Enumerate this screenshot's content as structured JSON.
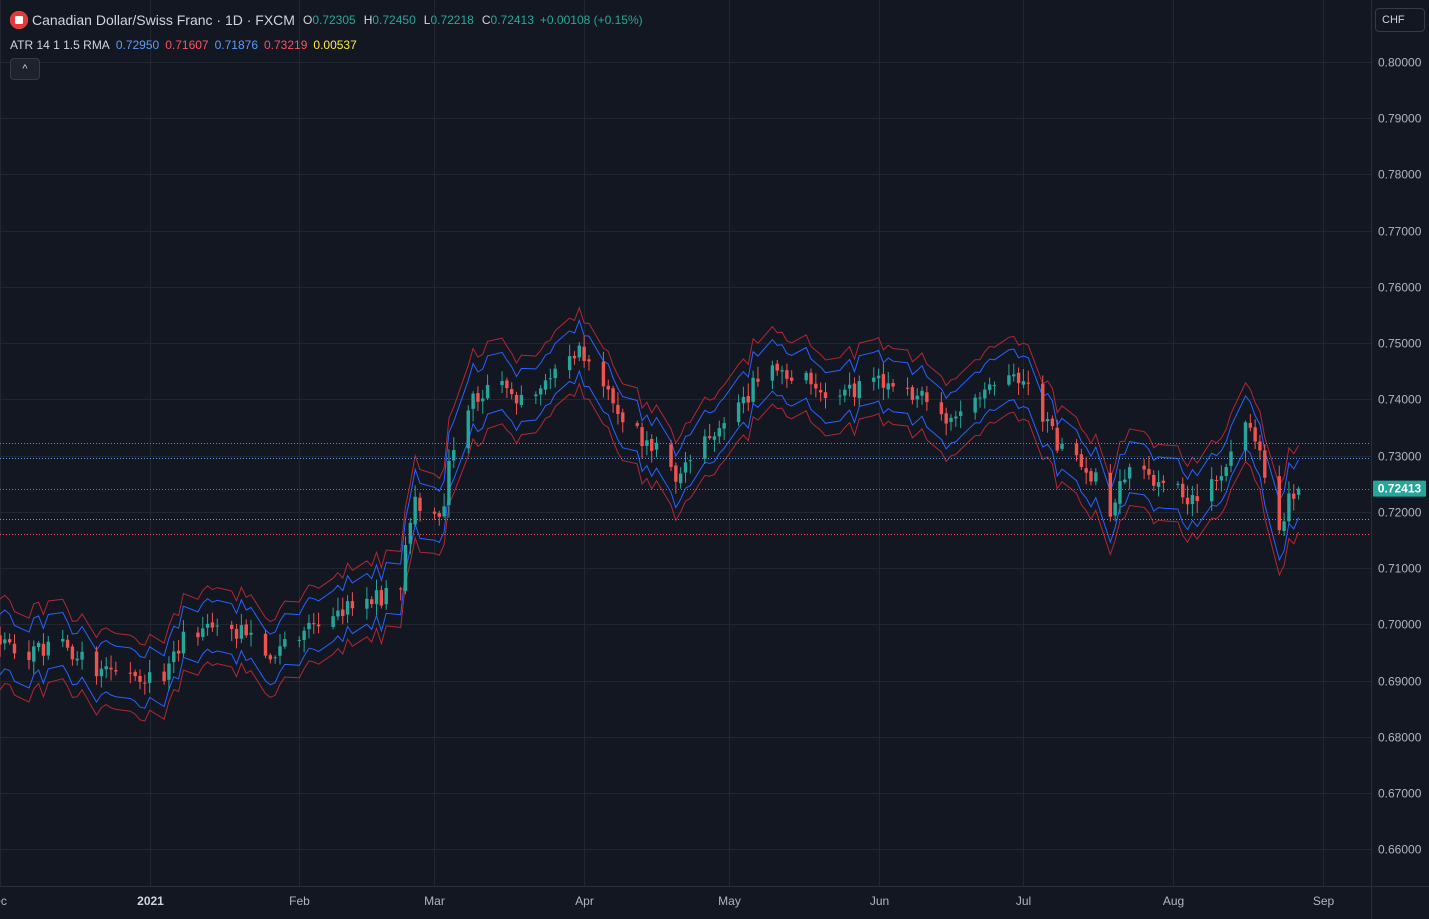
{
  "header": {
    "symbol_title": "Canadian Dollar/Swiss Franc · 1D · FXCM",
    "o_label": "O",
    "o_value": "0.72305",
    "h_label": "H",
    "h_value": "0.72450",
    "l_label": "L",
    "l_value": "0.72218",
    "c_label": "C",
    "c_value": "0.72413",
    "change": "+0.00108 (+0.15%)",
    "collapse_glyph": "^",
    "currency": "CHF"
  },
  "indicator": {
    "label": "ATR 14 1 1.5 RMA",
    "values": [
      "0.72950",
      "0.71607",
      "0.71876",
      "0.73219",
      "0.00537"
    ],
    "colors": [
      "#5b9cf6",
      "#f7525f",
      "#5b9cf6",
      "#f7525f",
      "#ffeb3b"
    ]
  },
  "colors": {
    "background": "#131722",
    "grid": "#222631",
    "text": "#b2b5be",
    "up": "#26a69a",
    "down": "#ef5350",
    "band_inner": "#2962ff",
    "band_outer": "#b22833",
    "last_price": "#26a69a"
  },
  "chart_data": {
    "type": "candlestick",
    "y_ticks": [
      "0.80000",
      "0.79000",
      "0.78000",
      "0.77000",
      "0.76000",
      "0.75000",
      "0.74000",
      "0.73000",
      "0.72000",
      "0.71000",
      "0.70000",
      "0.69000",
      "0.68000",
      "0.67000",
      "0.66000"
    ],
    "ylim": [
      0.6535,
      0.811
    ],
    "x_ticks": [
      {
        "date": "2020-12-01",
        "label": "ec",
        "bold": false
      },
      {
        "date": "2021-01-01",
        "label": "2021",
        "bold": true
      },
      {
        "date": "2021-02-01",
        "label": "Feb",
        "bold": false
      },
      {
        "date": "2021-03-01",
        "label": "Mar",
        "bold": false
      },
      {
        "date": "2021-04-01",
        "label": "Apr",
        "bold": false
      },
      {
        "date": "2021-05-01",
        "label": "May",
        "bold": false
      },
      {
        "date": "2021-06-01",
        "label": "Jun",
        "bold": false
      },
      {
        "date": "2021-07-01",
        "label": "Jul",
        "bold": false
      },
      {
        "date": "2021-08-01",
        "label": "Aug",
        "bold": false
      },
      {
        "date": "2021-09-01",
        "label": "Sep",
        "bold": false
      }
    ],
    "xlim": [
      "2020-12-01",
      "2021-09-11"
    ],
    "last_price": 0.72413,
    "last_price_label": "0.72413",
    "horizontal_lines": [
      {
        "value": 0.73219,
        "color": "#f7525f"
      },
      {
        "value": 0.7295,
        "color": "#5b9cf6"
      },
      {
        "value": 0.72413,
        "color": "#26a69a"
      },
      {
        "value": 0.71876,
        "color": "#5b9cf6"
      },
      {
        "value": 0.71607,
        "color": "#f7525f"
      }
    ],
    "anchors": [
      [
        "2020-12-01",
        0.698
      ],
      [
        "2020-12-07",
        0.6945
      ],
      [
        "2020-12-14",
        0.696
      ],
      [
        "2020-12-21",
        0.6925
      ],
      [
        "2020-12-28",
        0.6905
      ],
      [
        "2021-01-04",
        0.691
      ],
      [
        "2021-01-08",
        0.6975
      ],
      [
        "2021-01-14",
        0.701
      ],
      [
        "2021-01-20",
        0.6985
      ],
      [
        "2021-01-27",
        0.6945
      ],
      [
        "2021-02-03",
        0.6985
      ],
      [
        "2021-02-10",
        0.703
      ],
      [
        "2021-02-17",
        0.7045
      ],
      [
        "2021-02-22",
        0.7075
      ],
      [
        "2021-02-25",
        0.7225
      ],
      [
        "2021-03-02",
        0.718
      ],
      [
        "2021-03-05",
        0.732
      ],
      [
        "2021-03-09",
        0.7395
      ],
      [
        "2021-03-12",
        0.742
      ],
      [
        "2021-03-18",
        0.741
      ],
      [
        "2021-03-24",
        0.743
      ],
      [
        "2021-03-31",
        0.7495
      ],
      [
        "2021-04-05",
        0.744
      ],
      [
        "2021-04-09",
        0.735
      ],
      [
        "2021-04-15",
        0.732
      ],
      [
        "2021-04-20",
        0.725
      ],
      [
        "2021-04-26",
        0.733
      ],
      [
        "2021-05-03",
        0.7395
      ],
      [
        "2021-05-10",
        0.7455
      ],
      [
        "2021-05-18",
        0.744
      ],
      [
        "2021-05-24",
        0.74
      ],
      [
        "2021-05-31",
        0.743
      ],
      [
        "2021-06-08",
        0.741
      ],
      [
        "2021-06-15",
        0.737
      ],
      [
        "2021-06-22",
        0.741
      ],
      [
        "2021-06-28",
        0.743
      ],
      [
        "2021-07-02",
        0.744
      ],
      [
        "2021-07-06",
        0.735
      ],
      [
        "2021-07-09",
        0.731
      ],
      [
        "2021-07-15",
        0.727
      ],
      [
        "2021-07-19",
        0.7205
      ],
      [
        "2021-07-23",
        0.7285
      ],
      [
        "2021-07-28",
        0.726
      ],
      [
        "2021-08-02",
        0.724
      ],
      [
        "2021-08-06",
        0.7205
      ],
      [
        "2021-08-12",
        0.7285
      ],
      [
        "2021-08-16",
        0.735
      ],
      [
        "2021-08-19",
        0.731
      ],
      [
        "2021-08-23",
        0.7155
      ],
      [
        "2021-08-25",
        0.722
      ],
      [
        "2021-08-27",
        0.7241
      ]
    ]
  }
}
